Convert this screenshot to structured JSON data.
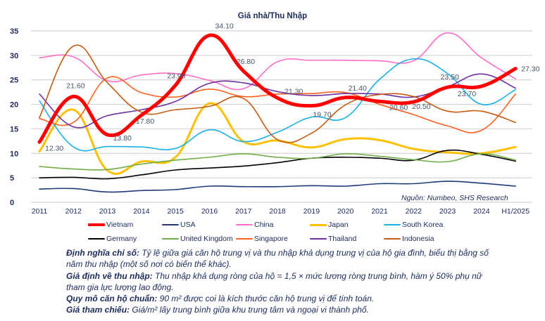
{
  "chart_data": {
    "type": "line",
    "title": "Giá nhà/Thu Nhập",
    "xlabel": "",
    "ylabel": "",
    "categories": [
      "2011",
      "2012",
      "2013",
      "2014",
      "2015",
      "2016",
      "2017",
      "2018",
      "2019",
      "2020",
      "2021",
      "2022",
      "2023",
      "2024",
      "H1/2025"
    ],
    "ylim": [
      0,
      35
    ],
    "yticks": [
      0,
      5,
      10,
      15,
      20,
      25,
      30,
      35
    ],
    "grid": true,
    "legend_position": "bottom",
    "series": [
      {
        "name": "Vietnam",
        "color": "#ff0000",
        "emphasis": true,
        "values": [
          12.3,
          21.6,
          13.8,
          17.8,
          23.9,
          34.1,
          26.8,
          21.3,
          19.7,
          21.4,
          20.6,
          20.5,
          23.5,
          23.7,
          27.3
        ]
      },
      {
        "name": "USA",
        "color": "#1f3a7a",
        "values": [
          2.7,
          2.8,
          2.1,
          2.4,
          2.6,
          3.3,
          3.2,
          3.2,
          3.4,
          3.3,
          3.8,
          3.8,
          4.3,
          3.9,
          3.3
        ]
      },
      {
        "name": "China",
        "color": "#ff6ec7",
        "values": [
          29.5,
          29.7,
          24.8,
          26.0,
          26.3,
          24.9,
          23.2,
          28.7,
          29.0,
          29.0,
          28.9,
          28.9,
          34.6,
          29.5,
          25.2
        ]
      },
      {
        "name": "Japan",
        "color": "#ffc000",
        "values": [
          10.4,
          18.9,
          6.5,
          8.3,
          9.2,
          20.2,
          12.4,
          12.6,
          11.2,
          12.9,
          12.7,
          10.9,
          10.2,
          10.0,
          11.3
        ]
      },
      {
        "name": "South Korea",
        "color": "#1ab0e8",
        "values": [
          20.7,
          11.3,
          11.4,
          11.3,
          11.0,
          14.8,
          12.4,
          14.3,
          17.4,
          17.3,
          25.1,
          29.3,
          26.3,
          20.0,
          23.0
        ]
      },
      {
        "name": "Germany",
        "color": "#000000",
        "values": [
          5.0,
          5.1,
          4.8,
          5.6,
          6.6,
          7.0,
          7.4,
          8.1,
          9.0,
          9.2,
          9.0,
          8.6,
          10.6,
          9.8,
          8.4
        ]
      },
      {
        "name": "United Kingdom",
        "color": "#70ad47",
        "values": [
          7.3,
          6.8,
          6.7,
          7.8,
          8.6,
          9.2,
          9.9,
          9.2,
          9.0,
          9.9,
          9.4,
          8.7,
          8.3,
          9.9,
          8.6
        ]
      },
      {
        "name": "Singapore",
        "color": "#ff5f1f",
        "values": [
          17.1,
          16.3,
          25.4,
          22.4,
          21.5,
          23.1,
          21.6,
          22.1,
          22.2,
          22.4,
          20.0,
          17.9,
          15.6,
          14.7,
          22.1
        ]
      },
      {
        "name": "Thailand",
        "color": "#7030a0",
        "values": [
          22.1,
          15.4,
          17.7,
          18.9,
          20.6,
          24.3,
          24.4,
          22.6,
          21.8,
          22.2,
          22.1,
          21.5,
          23.6,
          26.2,
          23.3
        ]
      },
      {
        "name": "Indonesia",
        "color": "#c55a11",
        "values": [
          17.3,
          31.9,
          24.4,
          18.4,
          18.9,
          19.6,
          21.2,
          12.8,
          14.1,
          19.9,
          22.0,
          21.6,
          18.6,
          18.6,
          16.3
        ]
      }
    ],
    "data_labels": [
      "12.30",
      "21.60",
      "13.80",
      "17.80",
      "23.90",
      "34.10",
      "26.80",
      "21.30",
      "19.70",
      "21.40",
      "20.60",
      "20.50",
      "23.50",
      "23.70",
      "27.30"
    ],
    "annotation": "Nguồn: Numbeo, SHS Research"
  },
  "notes": [
    {
      "label": "Định nghĩa chỉ số:",
      "text": " Tỷ lệ giữa giá căn hộ trung vị và thu nhập khả dụng trung vị của hộ gia đình, biểu thị bằng số năm thu nhập (một số nơi có biến thể khác)."
    },
    {
      "label": "Giả định về thu nhập:",
      "text": " Thu nhập khả dụng ròng của hộ = 1,5 × mức lương ròng trung bình, hàm ý 50% phụ nữ tham gia lực lượng lao động."
    },
    {
      "label": "Quy mô căn hộ chuẩn:",
      "text": " 90 m² được coi là kích thước căn hộ trung vị để tính toán."
    },
    {
      "label": "Giá tham chiếu:",
      "text": " Giá/m² lấy trung bình giữa khu trung tâm và ngoại vi thành phố."
    }
  ]
}
